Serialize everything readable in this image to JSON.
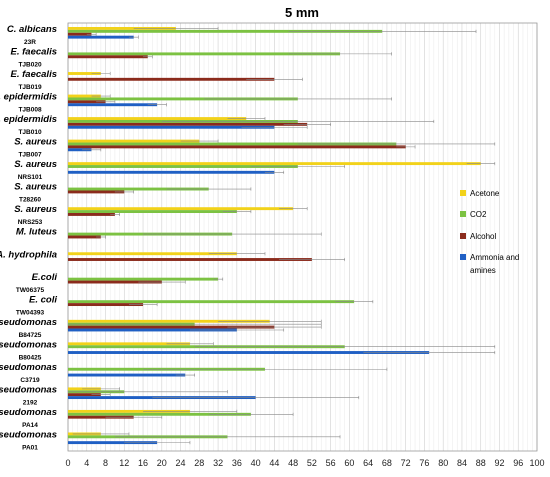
{
  "chart_data": {
    "type": "bar",
    "orientation": "horizontal",
    "title": "5 mm",
    "xlim": [
      0,
      100
    ],
    "xticks": [
      0,
      4,
      8,
      12,
      16,
      20,
      24,
      28,
      32,
      36,
      40,
      44,
      48,
      52,
      56,
      60,
      64,
      68,
      72,
      76,
      80,
      84,
      88,
      92,
      96,
      100
    ],
    "grid": "vertical",
    "legend_position": "right",
    "categories": [
      {
        "name": "C. albicans",
        "code": "23R"
      },
      {
        "name": "E. faecalis",
        "code": "TJB020"
      },
      {
        "name": "E. faecalis",
        "code": "TJB019"
      },
      {
        "name": "S. epidermidis",
        "code": "TJB008"
      },
      {
        "name": "S. epidermidis",
        "code": "TJB010"
      },
      {
        "name": "S. aureus",
        "code": "TJB007"
      },
      {
        "name": "S. aureus",
        "code": "NRS101"
      },
      {
        "name": "S. aureus",
        "code": "T28260"
      },
      {
        "name": "S. aureus",
        "code": "NRS253"
      },
      {
        "name": "M. luteus",
        "code": ""
      },
      {
        "name": "A. hydrophila",
        "code": ""
      },
      {
        "name": "E.coli",
        "code": "TW06375"
      },
      {
        "name": "E. coli",
        "code": "TW04393"
      },
      {
        "name": "Pseudomonas",
        "code": "B84725"
      },
      {
        "name": "Pseudomonas",
        "code": "B80425"
      },
      {
        "name": "Pseudomonas",
        "code": "C3719"
      },
      {
        "name": "Pseudomonas",
        "code": "2192"
      },
      {
        "name": "Pseudomonas",
        "code": "PA14"
      },
      {
        "name": "Pseudomonas",
        "code": "PA01"
      }
    ],
    "series": [
      {
        "name": "Acetone",
        "color": "#f2d21a",
        "values": [
          23,
          0,
          7,
          7,
          38,
          28,
          88,
          0,
          48,
          0,
          36,
          0,
          0,
          43,
          26,
          0,
          7,
          26,
          7
        ],
        "errors": [
          9,
          0,
          2,
          2,
          4,
          4,
          3,
          0,
          3,
          0,
          6,
          0,
          0,
          11,
          5,
          0,
          4,
          10,
          6
        ]
      },
      {
        "name": "CO2",
        "color": "#7cc242",
        "values": [
          67,
          58,
          0,
          49,
          49,
          70,
          49,
          30,
          36,
          35,
          0,
          32,
          61,
          27,
          59,
          42,
          12,
          39,
          34
        ],
        "errors": [
          20,
          11,
          0,
          20,
          29,
          21,
          10,
          9,
          3,
          19,
          0,
          1,
          4,
          27,
          32,
          26,
          22,
          9,
          24
        ]
      },
      {
        "name": "Alcohol",
        "color": "#8b2b1c",
        "values": [
          5,
          17,
          44,
          8,
          51,
          72,
          0,
          12,
          10,
          7,
          52,
          20,
          16,
          44,
          0,
          0,
          7,
          14,
          0
        ],
        "errors": [
          1,
          1,
          6,
          2,
          5,
          2,
          0,
          2,
          1,
          1,
          7,
          5,
          3,
          10,
          0,
          0,
          2,
          6,
          0
        ]
      },
      {
        "name": "Ammonia and amines",
        "color": "#1f5fc4",
        "values": [
          14,
          0,
          0,
          19,
          44,
          5,
          44,
          0,
          0,
          0,
          0,
          0,
          0,
          36,
          77,
          25,
          40,
          0,
          19
        ],
        "errors": [
          1,
          0,
          0,
          2,
          7,
          2,
          2,
          0,
          0,
          0,
          0,
          0,
          0,
          10,
          14,
          2,
          22,
          0,
          7
        ]
      }
    ]
  }
}
